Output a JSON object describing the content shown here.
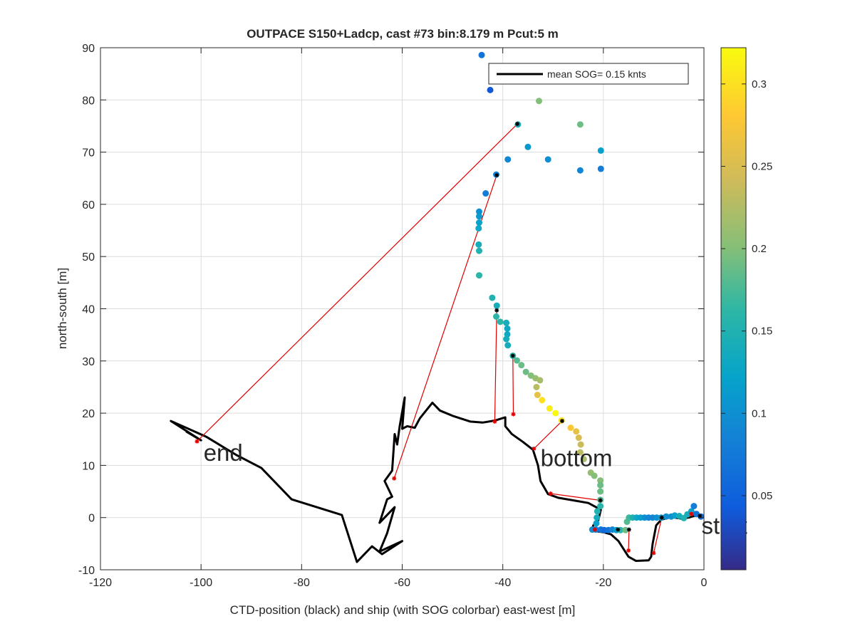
{
  "chart_data": {
    "type": "scatter",
    "title": "OUTPACE S150+Ladcp, cast #73 bin:8.179 m  Pcut:5 m",
    "xlabel": "CTD-position (black) and ship (with SOG colorbar) east-west [m]",
    "ylabel": "north-south [m]",
    "xlim": [
      -120,
      0
    ],
    "ylim": [
      -10,
      90
    ],
    "xticks": [
      -120,
      -100,
      -80,
      -60,
      -40,
      -20,
      0
    ],
    "yticks": [
      -10,
      0,
      10,
      20,
      30,
      40,
      50,
      60,
      70,
      80,
      90
    ],
    "grid": true,
    "legend": {
      "position": "top-right",
      "entries": [
        "mean SOG=  0.15 knts"
      ]
    },
    "colorbar": {
      "label": "",
      "range": [
        0.005,
        0.322
      ],
      "ticks": [
        0.05,
        0.1,
        0.15,
        0.2,
        0.25,
        0.3
      ],
      "colormap": "parula"
    },
    "annotations": [
      {
        "text": "end",
        "x": -99.5,
        "y": 12.5
      },
      {
        "text": "bottom",
        "x": -32.5,
        "y": 11.5
      },
      {
        "text": "start",
        "x": -0.5,
        "y": -1.5
      }
    ],
    "ctd_track": [
      [
        0,
        0
      ],
      [
        -1,
        0.5
      ],
      [
        -2,
        0.3
      ],
      [
        -3,
        0
      ],
      [
        -4.5,
        -0.2
      ],
      [
        -6.5,
        0.1
      ],
      [
        -8.5,
        -0.4
      ],
      [
        -9.5,
        -1.5
      ],
      [
        -10.2,
        -5
      ],
      [
        -10.5,
        -7.5
      ],
      [
        -11,
        -8.2
      ],
      [
        -13.5,
        -8.3
      ],
      [
        -15,
        -7.5
      ],
      [
        -16,
        -6
      ],
      [
        -17,
        -4.5
      ],
      [
        -18.5,
        -3.2
      ],
      [
        -20,
        -2.8
      ],
      [
        -21.5,
        -2.6
      ],
      [
        -22.3,
        -2.4
      ],
      [
        -22,
        -1.5
      ],
      [
        -21,
        -0.5
      ],
      [
        -20.5,
        1.5
      ],
      [
        -23,
        2.8
      ],
      [
        -26,
        3.3
      ],
      [
        -29,
        3.8
      ],
      [
        -31,
        4.5
      ],
      [
        -32.5,
        7
      ],
      [
        -33,
        10
      ],
      [
        -34,
        13
      ],
      [
        -36,
        14.5
      ],
      [
        -38.2,
        16
      ],
      [
        -39.5,
        17.5
      ],
      [
        -39.5,
        19.2
      ],
      [
        -41.5,
        18.6
      ],
      [
        -44,
        18.2
      ],
      [
        -46.5,
        18.4
      ],
      [
        -50,
        19.5
      ],
      [
        -52.5,
        20.5
      ],
      [
        -54,
        22
      ],
      [
        -56.5,
        19
      ],
      [
        -57.5,
        17.2
      ],
      [
        -59,
        17.5
      ],
      [
        -60,
        17
      ],
      [
        -59.5,
        23
      ],
      [
        -60.5,
        17.5
      ],
      [
        -61,
        14
      ],
      [
        -61.5,
        16
      ],
      [
        -62,
        9
      ],
      [
        -63.5,
        7
      ],
      [
        -62,
        4
      ],
      [
        -63,
        3.5
      ],
      [
        -64.5,
        -1
      ],
      [
        -63.5,
        0
      ],
      [
        -61.5,
        2
      ],
      [
        -63,
        -3
      ],
      [
        -64.5,
        -6.5
      ],
      [
        -60,
        -4.5
      ],
      [
        -64,
        -7
      ],
      [
        -66,
        -5.5
      ],
      [
        -69,
        -8.5
      ],
      [
        -72,
        0.5
      ],
      [
        -82,
        3.5
      ],
      [
        -88,
        9.5
      ],
      [
        -93,
        12
      ],
      [
        -99,
        15.5
      ],
      [
        -106,
        18.5
      ],
      [
        -100,
        14.8
      ],
      [
        -103,
        16.5
      ]
    ],
    "ship_points": [
      {
        "x": -44.2,
        "y": 88.6,
        "sog": 0.07
      },
      {
        "x": -42.5,
        "y": 81.9,
        "sog": 0.04
      },
      {
        "x": -32.8,
        "y": 79.8,
        "sog": 0.2
      },
      {
        "x": -24.6,
        "y": 75.3,
        "sog": 0.19
      },
      {
        "x": -37,
        "y": 75.3,
        "sog": 0.14
      },
      {
        "x": -35,
        "y": 71,
        "sog": 0.11
      },
      {
        "x": -20.5,
        "y": 70.3,
        "sog": 0.12
      },
      {
        "x": -39,
        "y": 68.6,
        "sog": 0.09
      },
      {
        "x": -31,
        "y": 68.6,
        "sog": 0.1
      },
      {
        "x": -24.6,
        "y": 66.5,
        "sog": 0.09
      },
      {
        "x": -20.5,
        "y": 66.8,
        "sog": 0.08
      },
      {
        "x": -41.3,
        "y": 65.7,
        "sog": 0.09
      },
      {
        "x": -43.4,
        "y": 62.1,
        "sog": 0.08
      },
      {
        "x": -44.7,
        "y": 58.6,
        "sog": 0.1
      },
      {
        "x": -44.7,
        "y": 57.7,
        "sog": 0.11
      },
      {
        "x": -44.7,
        "y": 56.5,
        "sog": 0.12
      },
      {
        "x": -44.8,
        "y": 55.4,
        "sog": 0.13
      },
      {
        "x": -44.8,
        "y": 52.3,
        "sog": 0.14
      },
      {
        "x": -44.7,
        "y": 51.1,
        "sog": 0.15
      },
      {
        "x": -44.7,
        "y": 46.4,
        "sog": 0.16
      },
      {
        "x": -42.1,
        "y": 42.1,
        "sog": 0.15
      },
      {
        "x": -41.2,
        "y": 40.6,
        "sog": 0.14
      },
      {
        "x": -41.3,
        "y": 38.5,
        "sog": 0.16
      },
      {
        "x": -40.5,
        "y": 37.5,
        "sog": 0.16
      },
      {
        "x": -39.3,
        "y": 37.3,
        "sog": 0.14
      },
      {
        "x": -39.1,
        "y": 36.2,
        "sog": 0.13
      },
      {
        "x": -39.1,
        "y": 35.1,
        "sog": 0.13
      },
      {
        "x": -39.3,
        "y": 34.2,
        "sog": 0.14
      },
      {
        "x": -39,
        "y": 33,
        "sog": 0.14
      },
      {
        "x": -38,
        "y": 31,
        "sog": 0.16
      },
      {
        "x": -37.2,
        "y": 30.1,
        "sog": 0.18
      },
      {
        "x": -36.3,
        "y": 29.2,
        "sog": 0.19
      },
      {
        "x": -35.4,
        "y": 27.9,
        "sog": 0.19
      },
      {
        "x": -34.4,
        "y": 27.2,
        "sog": 0.2
      },
      {
        "x": -33.5,
        "y": 26.7,
        "sog": 0.21
      },
      {
        "x": -32.6,
        "y": 26.3,
        "sog": 0.22
      },
      {
        "x": -33.3,
        "y": 25,
        "sog": 0.23
      },
      {
        "x": -33.1,
        "y": 23.5,
        "sog": 0.26
      },
      {
        "x": -32.2,
        "y": 22.5,
        "sog": 0.3
      },
      {
        "x": -30.7,
        "y": 20.9,
        "sog": 0.31
      },
      {
        "x": -29.5,
        "y": 20,
        "sog": 0.32
      },
      {
        "x": -28.3,
        "y": 18.6,
        "sog": 0.3
      },
      {
        "x": -26.5,
        "y": 17.2,
        "sog": 0.28
      },
      {
        "x": -25.4,
        "y": 16.5,
        "sog": 0.26
      },
      {
        "x": -24.9,
        "y": 15.3,
        "sog": 0.25
      },
      {
        "x": -24.5,
        "y": 14,
        "sog": 0.24
      },
      {
        "x": -24.6,
        "y": 12.5,
        "sog": 0.23
      },
      {
        "x": -23.9,
        "y": 11.2,
        "sog": 0.22
      },
      {
        "x": -22.5,
        "y": 8.6,
        "sog": 0.21
      },
      {
        "x": -21.8,
        "y": 8,
        "sog": 0.2
      },
      {
        "x": -20.6,
        "y": 7.1,
        "sog": 0.2
      },
      {
        "x": -20.6,
        "y": 6.2,
        "sog": 0.19
      },
      {
        "x": -20.6,
        "y": 5,
        "sog": 0.19
      },
      {
        "x": -20.6,
        "y": 3.4,
        "sog": 0.18
      },
      {
        "x": -20.6,
        "y": 2.2,
        "sog": 0.16
      },
      {
        "x": -21.2,
        "y": 1.2,
        "sog": 0.15
      },
      {
        "x": -21.3,
        "y": 0,
        "sog": 0.14
      },
      {
        "x": -21.4,
        "y": -1.1,
        "sog": 0.12
      },
      {
        "x": -22.2,
        "y": -2.3,
        "sog": 0.1
      },
      {
        "x": -21.5,
        "y": -2.3,
        "sog": 0.08
      },
      {
        "x": -20.5,
        "y": -2.3,
        "sog": 0.07
      },
      {
        "x": -19.8,
        "y": -2.4,
        "sog": 0.06
      },
      {
        "x": -19,
        "y": -2.4,
        "sog": 0.07
      },
      {
        "x": -18.2,
        "y": -2.3,
        "sog": 0.09
      },
      {
        "x": -17.4,
        "y": -2.4,
        "sog": 0.12
      },
      {
        "x": -16.6,
        "y": -2.4,
        "sog": 0.16
      },
      {
        "x": -15.6,
        "y": -2.4,
        "sog": 0.19
      },
      {
        "x": -15.3,
        "y": -0.8,
        "sog": 0.18
      },
      {
        "x": -14.9,
        "y": 0,
        "sog": 0.17
      },
      {
        "x": -14.2,
        "y": 0,
        "sog": 0.15
      },
      {
        "x": -13.4,
        "y": 0,
        "sog": 0.13
      },
      {
        "x": -12.6,
        "y": 0,
        "sog": 0.12
      },
      {
        "x": -11.8,
        "y": 0,
        "sog": 0.1
      },
      {
        "x": -11,
        "y": 0,
        "sog": 0.09
      },
      {
        "x": -10.2,
        "y": 0,
        "sog": 0.09
      },
      {
        "x": -9.4,
        "y": 0,
        "sog": 0.1
      },
      {
        "x": -8.5,
        "y": 0,
        "sog": 0.11
      },
      {
        "x": -7.5,
        "y": 0.2,
        "sog": 0.1
      },
      {
        "x": -6.5,
        "y": 0.2,
        "sog": 0.1
      },
      {
        "x": -5.8,
        "y": 0.4,
        "sog": 0.12
      },
      {
        "x": -4.9,
        "y": 0.3,
        "sog": 0.14
      },
      {
        "x": -4,
        "y": -0.1,
        "sog": 0.15
      },
      {
        "x": -3.3,
        "y": 0.6,
        "sog": 0.14
      },
      {
        "x": -2.5,
        "y": 1.2,
        "sog": 0.12
      },
      {
        "x": -2,
        "y": 2.2,
        "sog": 0.08
      },
      {
        "x": -1.5,
        "y": 0.7,
        "sog": 0.07
      },
      {
        "x": -0.6,
        "y": 0.2,
        "sog": 0.06
      }
    ],
    "red_connections": [
      [
        [
          -0.8,
          0.3
        ],
        [
          -2.5,
          0.7
        ]
      ],
      [
        [
          -8.4,
          0
        ],
        [
          -10,
          -6.8
        ]
      ],
      [
        [
          -14.9,
          -2.3
        ],
        [
          -15,
          -6.3
        ]
      ],
      [
        [
          -17.1,
          -2.3
        ],
        [
          -21.7,
          -2.3
        ]
      ],
      [
        [
          -20.6,
          3.3
        ],
        [
          -30.5,
          4.6
        ]
      ],
      [
        [
          -28.2,
          18.5
        ],
        [
          -33.8,
          13.2
        ]
      ],
      [
        [
          -38,
          31
        ],
        [
          -37.9,
          19.8
        ]
      ],
      [
        [
          -41.2,
          39.7
        ],
        [
          -41.6,
          18.4
        ]
      ],
      [
        [
          -41.2,
          65.6
        ],
        [
          -61.6,
          7.5
        ]
      ],
      [
        [
          -37.1,
          75.4
        ],
        [
          -100.8,
          14.6
        ]
      ]
    ],
    "black_star_markers": [
      [
        -0.8,
        0.3
      ],
      [
        -8.4,
        0
      ],
      [
        -14.9,
        -2.3
      ],
      [
        -17.1,
        -2.3
      ],
      [
        -20.6,
        3.3
      ],
      [
        -28.2,
        18.5
      ],
      [
        -38,
        31
      ],
      [
        -41.2,
        39.7
      ],
      [
        -41.2,
        65.6
      ],
      [
        -37.1,
        75.4
      ]
    ],
    "red_star_markers": [
      [
        -2.5,
        0.7
      ],
      [
        -10,
        -6.8
      ],
      [
        -15,
        -6.3
      ],
      [
        -21.7,
        -2.3
      ],
      [
        -30.5,
        4.6
      ],
      [
        -33.8,
        13.2
      ],
      [
        -37.9,
        19.8
      ],
      [
        -41.6,
        18.4
      ],
      [
        -61.6,
        7.5
      ],
      [
        -100.8,
        14.6
      ]
    ]
  }
}
